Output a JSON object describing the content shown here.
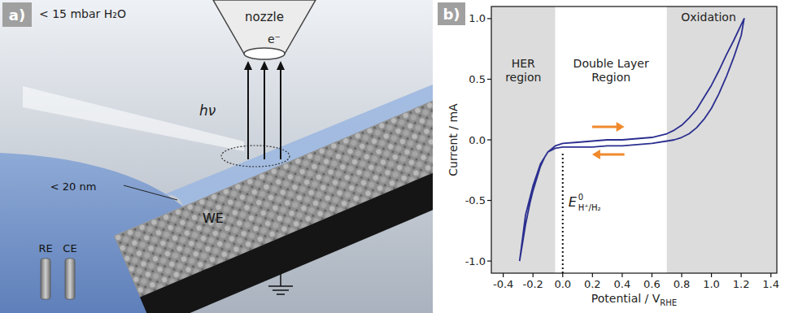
{
  "panels": [
    "a)",
    "b)"
  ],
  "diagram": {
    "pressure_label": "< 15 mbar H₂O",
    "nozzle_label": "nozzle",
    "electron_label": "e⁻",
    "photon_label": "hν",
    "film_label": "< 20 nm",
    "working_electrode": "WE",
    "reference_electrode": "RE",
    "counter_electrode": "CE"
  },
  "chart_data": {
    "type": "line",
    "x_label": "Potential / V",
    "x_label_sub": "RHE",
    "y_label": "Current / mA",
    "xlim": [
      -0.48,
      1.44
    ],
    "xticks": [
      -0.4,
      -0.2,
      {
        "value": 0,
        "label": "0.0"
      },
      0.2,
      0.4,
      0.6,
      0.8,
      {
        "value": 1,
        "label": "1.0"
      },
      1.2,
      1.4
    ],
    "ylim": [
      -1.1,
      1.1
    ],
    "yticks": [
      {
        "value": -1,
        "label": "-1.0"
      },
      -0.5,
      {
        "value": 0,
        "label": "0.0"
      },
      0.5,
      {
        "value": 1,
        "label": "1.0"
      }
    ],
    "grid": false,
    "x": [
      -0.29,
      -0.27,
      -0.25,
      -0.22,
      -0.2,
      -0.17,
      -0.15,
      -0.12,
      -0.1,
      -0.07,
      -0.05,
      0,
      0.1,
      0.2,
      0.3,
      0.4,
      0.5,
      0.6,
      0.7,
      0.75,
      0.8,
      0.85,
      0.9,
      0.95,
      1.0,
      1.05,
      1.1,
      1.15,
      1.2,
      1.22,
      1.2,
      1.15,
      1.1,
      1.05,
      1.0,
      0.95,
      0.9,
      0.85,
      0.8,
      0.75,
      0.7,
      0.6,
      0.5,
      0.4,
      0.3,
      0.2,
      0.1,
      0,
      -0.05,
      -0.1,
      -0.15,
      -0.2,
      -0.25,
      -0.29
    ],
    "series": [
      {
        "color": "#2b2f8f",
        "line_style": "solid",
        "values": [
          -1.0,
          -0.85,
          -0.7,
          -0.52,
          -0.42,
          -0.3,
          -0.22,
          -0.14,
          -0.1,
          -0.07,
          -0.05,
          -0.03,
          -0.02,
          -0.01,
          0,
          0,
          0.01,
          0.02,
          0.05,
          0.08,
          0.12,
          0.18,
          0.25,
          0.35,
          0.45,
          0.57,
          0.7,
          0.82,
          0.95,
          1.0,
          0.86,
          0.68,
          0.52,
          0.38,
          0.26,
          0.17,
          0.1,
          0.05,
          0.02,
          0.0,
          -0.01,
          -0.03,
          -0.04,
          -0.05,
          -0.05,
          -0.06,
          -0.06,
          -0.06,
          -0.07,
          -0.1,
          -0.2,
          -0.38,
          -0.62,
          -1.0
        ]
      }
    ],
    "regions": [
      {
        "label_lines": [
          "HER",
          "region"
        ],
        "from": -0.48,
        "to": -0.05,
        "color": "#dcdcdc"
      },
      {
        "label_lines": [
          "Double Layer",
          "Region"
        ],
        "from": -0.05,
        "to": 0.7,
        "color": "#ffffff"
      },
      {
        "label_lines": [
          "Oxidation"
        ],
        "from": 0.7,
        "to": 1.44,
        "color": "#dcdcdc"
      }
    ],
    "annotations": [
      {
        "x": 0,
        "label": "E",
        "sup": "0",
        "sub": "H⁺/H₂"
      }
    ]
  }
}
